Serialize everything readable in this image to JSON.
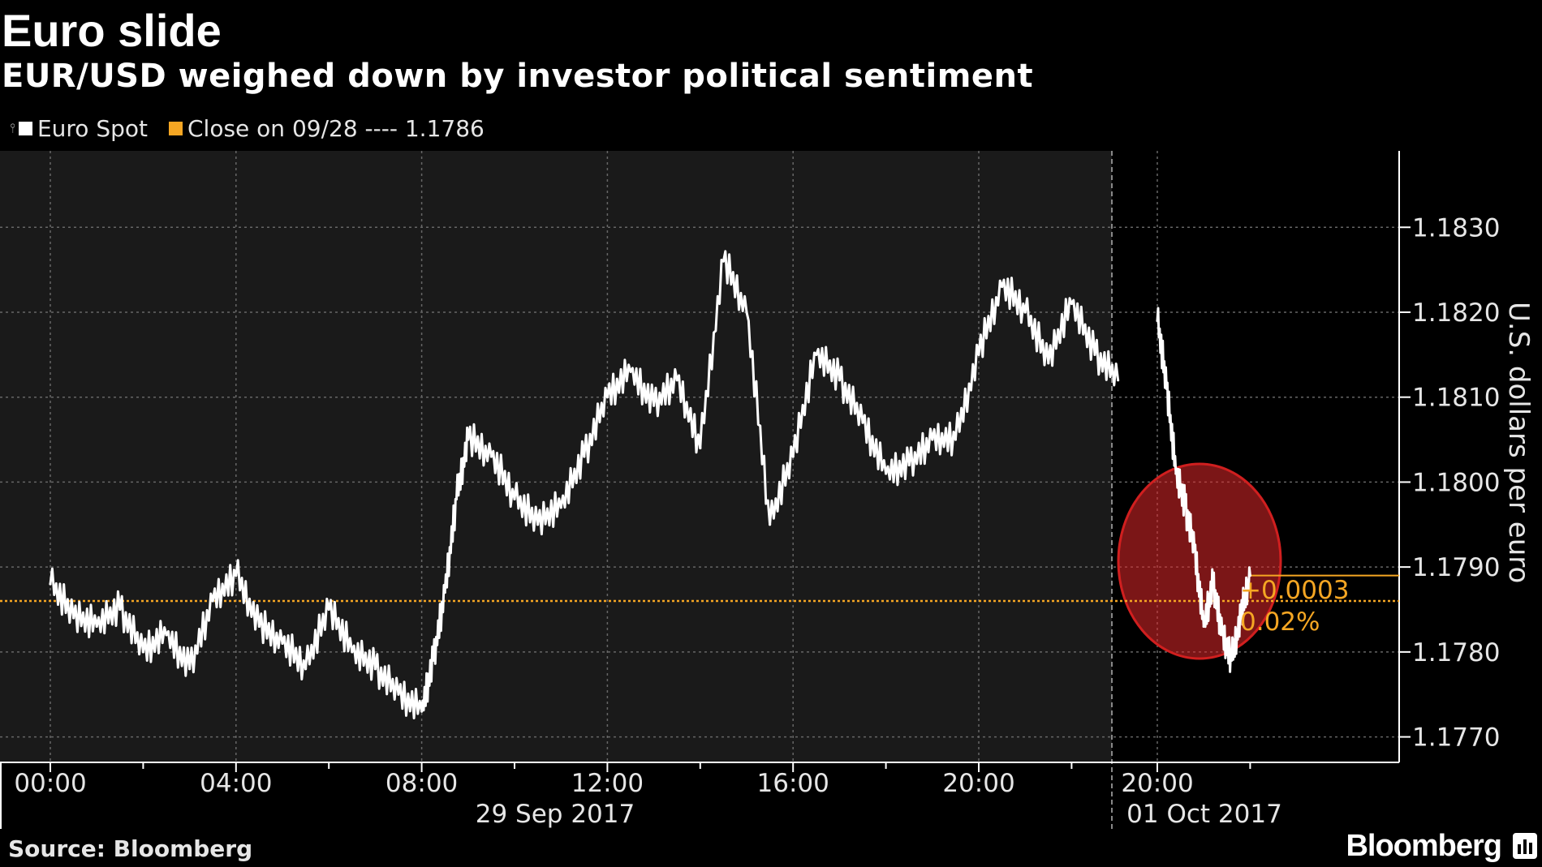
{
  "header": {
    "title": "Euro slide",
    "subtitle": "EUR/USD weighed down by investor political sentiment"
  },
  "legend": {
    "series_label": "Euro Spot",
    "close_label": "Close on 09/28 ---- 1.1786"
  },
  "footer": {
    "source": "Source: Bloomberg",
    "brand": "Bloomberg"
  },
  "colors": {
    "background": "#000000",
    "plot_area": "#1a1a1a",
    "series": "#ffffff",
    "close_line": "#f5a623",
    "highlight": "#e0282a"
  },
  "icons": {
    "brand": "bloomberg-logo-icon"
  },
  "chart_data": {
    "type": "line",
    "title": "Euro slide",
    "subtitle": "EUR/USD weighed down by investor political sentiment",
    "ylabel": "U.S. dollars per euro",
    "ylim": [
      1.1767,
      1.1839
    ],
    "y_ticks": [
      "1.1770",
      "1.1780",
      "1.1790",
      "1.1800",
      "1.1810",
      "1.1820",
      "1.1830"
    ],
    "x_ticks_session1": [
      "00:00",
      "04:00",
      "08:00",
      "12:00",
      "16:00",
      "20:00"
    ],
    "x_ticks_session2": [
      "20:00"
    ],
    "date_labels": [
      "29 Sep 2017",
      "01 Oct 2017"
    ],
    "reference_line": {
      "label": "Close on 09/28",
      "value": 1.1786
    },
    "last_value": 1.1789,
    "change_label": "+0.0003",
    "change_pct_label": "0.02%",
    "highlight": "sharp drop at open on 01 Oct 2017 (circled)",
    "grid": true,
    "legend_position": "top-left",
    "series": [
      {
        "name": "Euro Spot",
        "session": "29 Sep 2017",
        "x_hours": [
          0,
          0.5,
          1,
          1.5,
          2,
          2.5,
          3,
          3.5,
          4,
          4.5,
          5,
          5.5,
          6,
          6.5,
          7,
          7.5,
          8,
          8.25,
          8.5,
          8.75,
          9,
          9.5,
          10,
          10.5,
          11,
          11.5,
          12,
          12.5,
          13,
          13.5,
          14,
          14.5,
          15,
          15.5,
          16,
          16.5,
          17,
          17.5,
          18,
          18.5,
          19,
          19.5,
          20,
          20.5,
          21,
          21.5,
          22,
          22.5,
          23
        ],
        "values": [
          1.1788,
          1.1784,
          1.1783,
          1.1785,
          1.178,
          1.1782,
          1.1778,
          1.1786,
          1.1789,
          1.1783,
          1.1781,
          1.1778,
          1.1785,
          1.178,
          1.1778,
          1.1775,
          1.1773,
          1.1779,
          1.1787,
          1.1798,
          1.1805,
          1.1803,
          1.1798,
          1.1795,
          1.1797,
          1.1803,
          1.181,
          1.1813,
          1.1809,
          1.1812,
          1.1804,
          1.1826,
          1.182,
          1.1795,
          1.1803,
          1.1815,
          1.1812,
          1.1807,
          1.1801,
          1.1802,
          1.1805,
          1.1805,
          1.1815,
          1.1823,
          1.182,
          1.1814,
          1.1821,
          1.1815,
          1.1812
        ]
      },
      {
        "name": "Euro Spot",
        "session": "01 Oct 2017",
        "x_hours": [
          20,
          20.2,
          20.4,
          20.6,
          20.8,
          21.0,
          21.2,
          21.4,
          21.6,
          21.8,
          22.0
        ],
        "values": [
          1.1819,
          1.1811,
          1.1801,
          1.1797,
          1.1792,
          1.1783,
          1.1788,
          1.1782,
          1.1779,
          1.1784,
          1.1789
        ]
      }
    ]
  }
}
